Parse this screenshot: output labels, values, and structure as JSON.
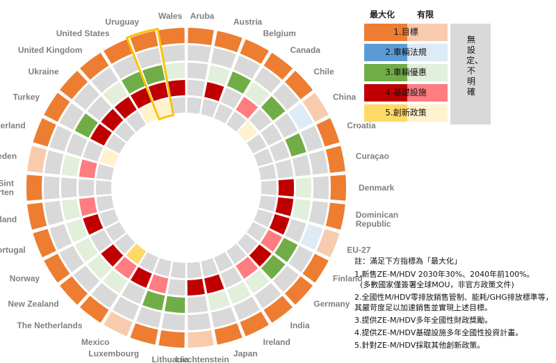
{
  "chart_data": {
    "type": "radial-heatmap",
    "countries": [
      "Aruba",
      "Austria",
      "Belgium",
      "Canada",
      "Chile",
      "China",
      "Croatia",
      "Curaçao",
      "Denmark",
      "Dominican Republic",
      "EU-27",
      "Finland",
      "Germany",
      "India",
      "Ireland",
      "Japan",
      "Liechtenstein",
      "Lithuania",
      "Luxembourg",
      "Mexico",
      "The Netherlands",
      "New Zealand",
      "Norway",
      "Portugal",
      "Scotland",
      "Sint Maarten",
      "Sweden",
      "Switzerland",
      "Turkey",
      "Ukraine",
      "United Kingdom",
      "United States",
      "Uruguay",
      "Wales"
    ],
    "highlighted_country": "Uruguay",
    "rings": [
      "1.目標",
      "2.車輛法規",
      "3.車輛優惠",
      "4.基礎設施",
      "5.創新政策"
    ],
    "levels": {
      "M": "最大化",
      "L": "有限",
      "U": "無設定、不明確"
    },
    "values": {
      "Aruba": [
        "M",
        "U",
        "U",
        "U",
        "U"
      ],
      "Austria": [
        "M",
        "U",
        "L",
        "M",
        "U"
      ],
      "Belgium": [
        "M",
        "U",
        "M",
        "U",
        "U"
      ],
      "Canada": [
        "M",
        "U",
        "L",
        "L",
        "U"
      ],
      "Chile": [
        "M",
        "U",
        "M",
        "U",
        "L"
      ],
      "China": [
        "L",
        "L",
        "U",
        "U",
        "U"
      ],
      "Croatia": [
        "M",
        "U",
        "M",
        "U",
        "U"
      ],
      "Curaçao": [
        "M",
        "U",
        "U",
        "U",
        "U"
      ],
      "Denmark": [
        "M",
        "U",
        "L",
        "M",
        "U"
      ],
      "Dominican Republic": [
        "M",
        "U",
        "L",
        "M",
        "U"
      ],
      "EU-27": [
        "L",
        "L",
        "U",
        "M",
        "U"
      ],
      "Finland": [
        "M",
        "U",
        "M",
        "L",
        "U"
      ],
      "Germany": [
        "M",
        "U",
        "M",
        "M",
        "U"
      ],
      "India": [
        "M",
        "U",
        "L",
        "L",
        "U"
      ],
      "Ireland": [
        "M",
        "U",
        "L",
        "U",
        "U"
      ],
      "Japan": [
        "M",
        "U",
        "L",
        "M",
        "U"
      ],
      "Liechtenstein": [
        "L",
        "U",
        "U",
        "M",
        "U"
      ],
      "Lithuania": [
        "M",
        "U",
        "M",
        "U",
        "U"
      ],
      "Luxembourg": [
        "M",
        "U",
        "M",
        "L",
        "U"
      ],
      "Mexico": [
        "L",
        "U",
        "U",
        "M",
        "U"
      ],
      "The Netherlands": [
        "M",
        "U",
        "L",
        "L",
        "M"
      ],
      "New Zealand": [
        "M",
        "U",
        "L",
        "M",
        "U"
      ],
      "Norway": [
        "M",
        "U",
        "L",
        "U",
        "U"
      ],
      "Portugal": [
        "M",
        "U",
        "L",
        "M",
        "U"
      ],
      "Scotland": [
        "M",
        "U",
        "L",
        "L",
        "U"
      ],
      "Sint Maarten": [
        "M",
        "U",
        "U",
        "U",
        "U"
      ],
      "Sweden": [
        "L",
        "U",
        "L",
        "L",
        "U"
      ],
      "Switzerland": [
        "M",
        "U",
        "U",
        "U",
        "L"
      ],
      "Turkey": [
        "M",
        "U",
        "M",
        "M",
        "U"
      ],
      "Ukraine": [
        "M",
        "U",
        "U",
        "M",
        "U"
      ],
      "United Kingdom": [
        "M",
        "U",
        "L",
        "M",
        "U"
      ],
      "United States": [
        "M",
        "U",
        "M",
        "M",
        "L"
      ],
      "Uruguay": [
        "M",
        "U",
        "M",
        "M",
        "L"
      ],
      "Wales": [
        "M",
        "U",
        "L",
        "M",
        "U"
      ]
    },
    "colors": {
      "1": {
        "M": "#ed7d31",
        "L": "#f8cbad"
      },
      "2": {
        "M": "#5b9bd5",
        "L": "#ddebf7"
      },
      "3": {
        "M": "#70ad47",
        "L": "#e2efda"
      },
      "4": {
        "M": "#c00000",
        "L": "#ff7c80"
      },
      "5": {
        "M": "#ffd966",
        "L": "#fff2cc"
      },
      "U": "#d9d9d9",
      "highlight": "#ffc000"
    }
  },
  "legend": {
    "header_max": "最大化",
    "header_limited": "有限",
    "items": [
      "1.目標",
      "2.車輛法規",
      "3.車輛優惠",
      "4.基礎設施",
      "5.創新政策"
    ],
    "undefined_label": "無設定、不明確"
  },
  "notes": {
    "title": "註：滿足下方指標為「最大化」",
    "items": [
      "1.新售ZE-M/HDV 2030年30%、2040年前100%。",
      "(多數國家僅簽署全球MOU，非官方政策文件)",
      "2.全國性M/HDV零排放銷售管制、能耗/GHG排放標準等，其嚴苛度足以加速銷售並實現上述目標。",
      "3.提供ZE-M/HDV多年全國性財政獎勵。",
      "4.提供ZE-M/HDV基礎設施多年全國性投資計畫。",
      "5.針對ZE-M/HDV採取其他創新政策。"
    ]
  }
}
